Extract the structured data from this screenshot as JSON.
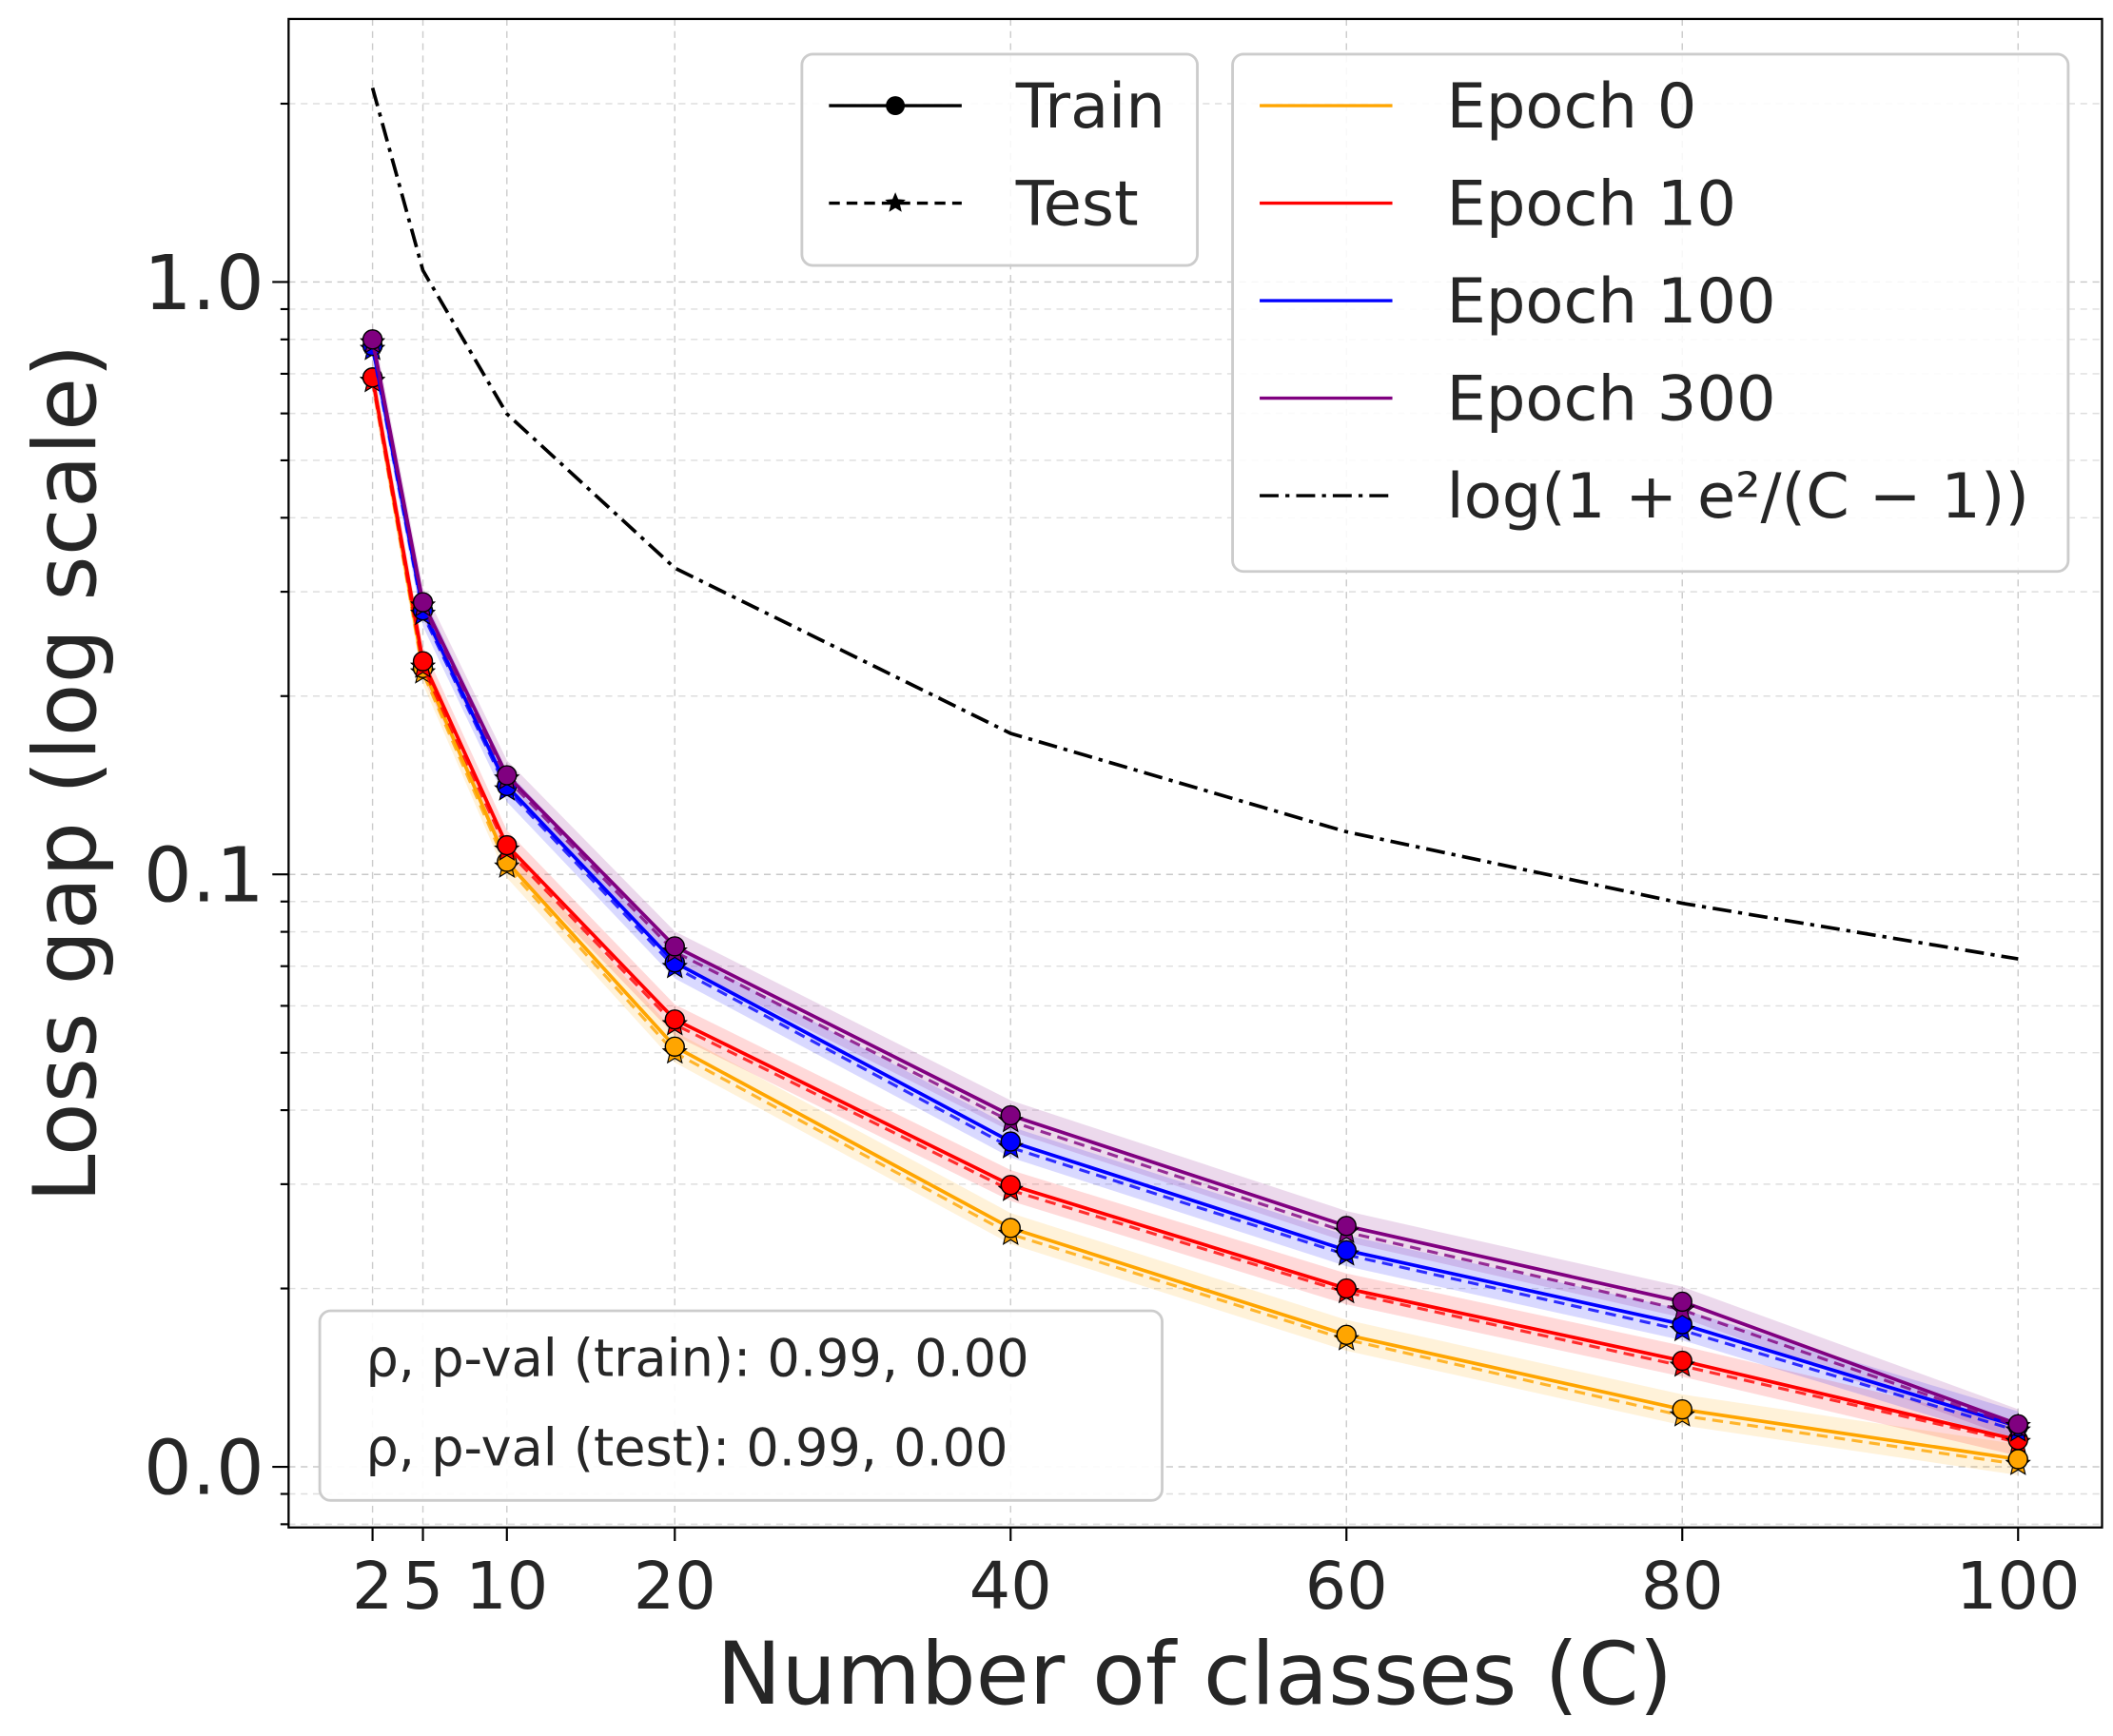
{
  "chart_data": {
    "type": "line",
    "xlabel": "Number of classes  (C)",
    "ylabel": "Loss gap (log  scale)",
    "x": [
      2,
      5,
      10,
      20,
      40,
      60,
      80,
      100
    ],
    "x_ticks": [
      "2",
      "5",
      "10",
      "20",
      "40",
      "60",
      "80",
      "100"
    ],
    "y_ticks": [
      {
        "value": 0.01,
        "label": "0.0"
      },
      {
        "value": 0.1,
        "label": "0.1"
      },
      {
        "value": 1.0,
        "label": "1.0"
      }
    ],
    "xlim": [
      -3,
      105
    ],
    "ylim": [
      0.0079,
      2.78
    ],
    "yscale": "log",
    "grid": true,
    "style_legend": [
      {
        "label": "Train",
        "line": "solid",
        "marker": "circle"
      },
      {
        "label": "Test",
        "line": "dashed",
        "marker": "star"
      }
    ],
    "series": [
      {
        "name": "Epoch 0",
        "color": "#ffa500",
        "train": [
          0.69,
          0.223,
          0.105,
          0.0512,
          0.0253,
          0.0167,
          0.0125,
          0.0103
        ],
        "test": [
          0.68,
          0.219,
          0.103,
          0.05,
          0.0247,
          0.0164,
          0.0122,
          0.0101
        ]
      },
      {
        "name": "Epoch 10",
        "color": "#ff0000",
        "train": [
          0.69,
          0.229,
          0.112,
          0.0569,
          0.0299,
          0.02,
          0.0151,
          0.0111
        ],
        "test": [
          0.68,
          0.224,
          0.11,
          0.0558,
          0.0293,
          0.0197,
          0.0148,
          0.011
        ]
      },
      {
        "name": "Epoch 100",
        "color": "#0000ff",
        "train": [
          0.78,
          0.279,
          0.141,
          0.071,
          0.0354,
          0.0232,
          0.0174,
          0.0117
        ],
        "test": [
          0.77,
          0.275,
          0.139,
          0.0697,
          0.0346,
          0.0228,
          0.017,
          0.0115
        ]
      },
      {
        "name": "Epoch 300",
        "color": "#800080",
        "train": [
          0.8,
          0.288,
          0.147,
          0.0756,
          0.0392,
          0.0255,
          0.019,
          0.0118
        ],
        "test": [
          0.79,
          0.284,
          0.145,
          0.074,
          0.0383,
          0.0249,
          0.0184,
          0.0117
        ]
      }
    ],
    "reference": {
      "name": "log(1 + e²/(C − 1))",
      "color": "#000000",
      "line": "dashdot",
      "values": [
        2.127,
        1.046,
        0.599,
        0.329,
        0.173,
        0.118,
        0.0894,
        0.072
      ]
    },
    "legend_placement": "top-right",
    "annotation": {
      "lines": [
        "ρ, p-val (train):  0.99, 0.00",
        "ρ, p-val (test):  0.99, 0.00"
      ],
      "placement": "bottom-left"
    }
  }
}
